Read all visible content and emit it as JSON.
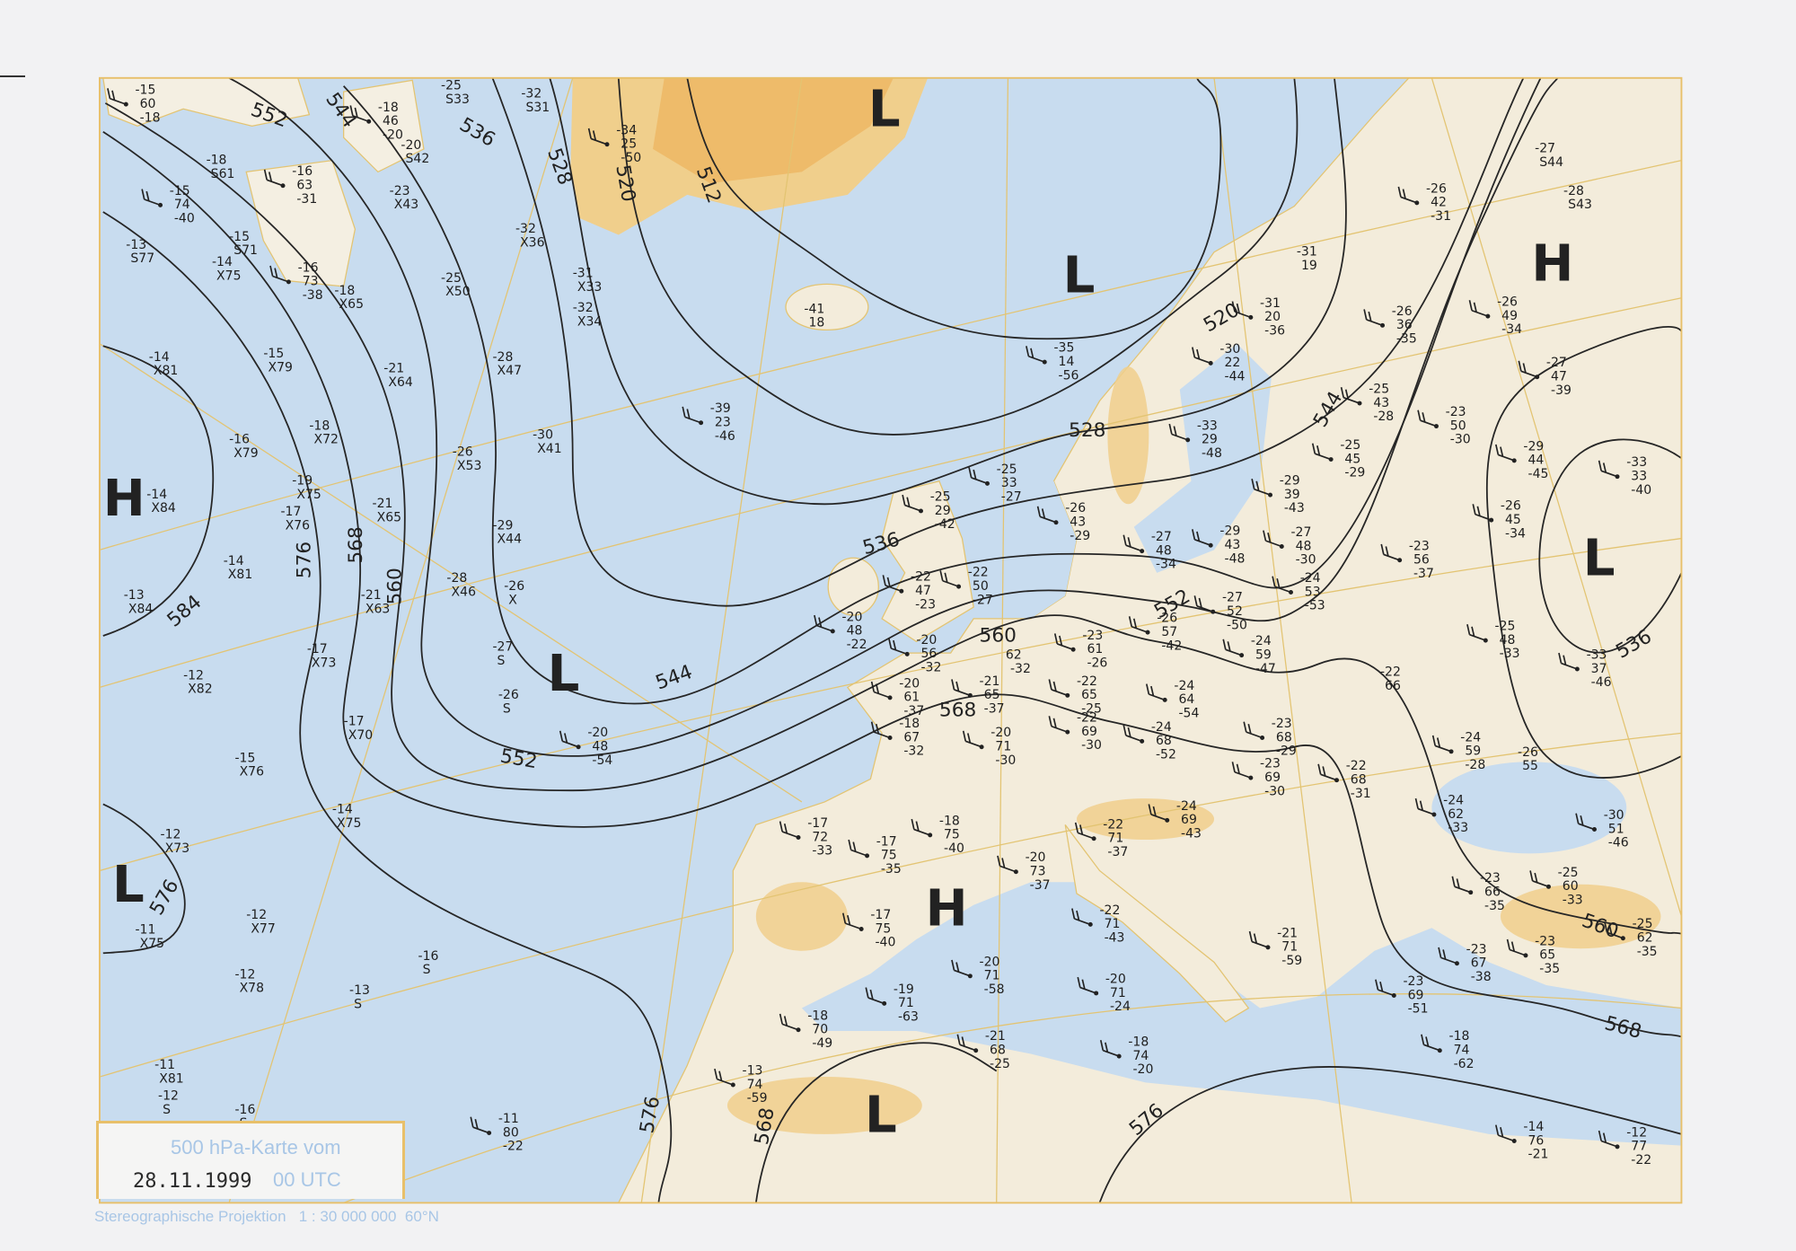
{
  "caption": {
    "title": "500 hPa-Karte vom",
    "date": "28.11.1999",
    "time": "00 UTC"
  },
  "footer": {
    "projection": "Stereographische Projektion",
    "scale": "1 : 30 000 000",
    "reference_latitude": "60°N"
  },
  "colors": {
    "sea": "#c8dcef",
    "land": "#f3ecdb",
    "highland": "#f0cf8c",
    "graticule": "#e3c472",
    "contour": "#262626",
    "caption_text": "#a8c6e6"
  },
  "pressure_centers": [
    {
      "type": "H"
    },
    {
      "type": "L"
    },
    {
      "type": "L"
    },
    {
      "type": "H"
    },
    {
      "type": "L"
    },
    {
      "type": "L"
    },
    {
      "type": "L"
    },
    {
      "type": "H"
    },
    {
      "type": "L"
    }
  ],
  "contour_labels": [
    "552",
    "544",
    "536",
    "528",
    "520",
    "512",
    "520",
    "528",
    "536",
    "544",
    "552",
    "560",
    "568",
    "576",
    "584",
    "576",
    "568",
    "560",
    "568",
    "576",
    "544",
    "536",
    "552",
    "560",
    "568",
    "576"
  ],
  "stations": [
    [
      "-15",
      "60",
      "-18"
    ],
    [
      "-18",
      "S61"
    ],
    [
      "-15",
      "74",
      "-40"
    ],
    [
      "-13",
      "S77"
    ],
    [
      "-15",
      "S71"
    ],
    [
      "-14",
      "X75"
    ],
    [
      "-16",
      "63",
      "-31"
    ],
    [
      "-16",
      "73",
      "-38"
    ],
    [
      "-18",
      "X65"
    ],
    [
      "-18",
      "46",
      "-20"
    ],
    [
      "-20",
      "S42"
    ],
    [
      "-23",
      "X43"
    ],
    [
      "-25",
      "S33"
    ],
    [
      "-32",
      "S31"
    ],
    [
      "-32",
      "X36"
    ],
    [
      "-25",
      "X50"
    ],
    [
      "-31",
      "X33"
    ],
    [
      "-32",
      "X34"
    ],
    [
      "-34",
      "25",
      "-50"
    ],
    [
      "-14",
      "X81"
    ],
    [
      "-15",
      "X79"
    ],
    [
      "-21",
      "X64"
    ],
    [
      "-28",
      "X47"
    ],
    [
      "-18",
      "X72"
    ],
    [
      "-16",
      "X79"
    ],
    [
      "-30",
      "X41"
    ],
    [
      "-26",
      "X53"
    ],
    [
      "-19",
      "X75"
    ],
    [
      "-17",
      "X76"
    ],
    [
      "-14",
      "X84"
    ],
    [
      "-21",
      "X65"
    ],
    [
      "-29",
      "X44"
    ],
    [
      "-14",
      "X81"
    ],
    [
      "-13",
      "X84"
    ],
    [
      "-28",
      "X46"
    ],
    [
      "-26",
      "X"
    ],
    [
      "-21",
      "X63"
    ],
    [
      "-27",
      "S"
    ],
    [
      "-17",
      "X73"
    ],
    [
      "-12",
      "X82"
    ],
    [
      "-26",
      "S"
    ],
    [
      "-17",
      "X70"
    ],
    [
      "-15",
      "X76"
    ],
    [
      "-20",
      "48",
      "-54"
    ],
    [
      "-14",
      "X75"
    ],
    [
      "-12",
      "X73"
    ],
    [
      "-12",
      "X77"
    ],
    [
      "-11",
      "X75"
    ],
    [
      "-16",
      "S"
    ],
    [
      "-12",
      "X78"
    ],
    [
      "-13",
      "S"
    ],
    [
      "-11",
      "X81"
    ],
    [
      "-12",
      "S"
    ],
    [
      "-16",
      "S"
    ],
    [
      "-11",
      "80",
      "-22"
    ],
    [
      "-41",
      "18"
    ],
    [
      "-39",
      "23",
      "-46"
    ],
    [
      "-35",
      "14",
      "-56"
    ],
    [
      "-31",
      "19"
    ],
    [
      "-31",
      "20",
      "-36"
    ],
    [
      "-30",
      "22",
      "-44"
    ],
    [
      "-33",
      "29",
      "-48"
    ],
    [
      "-26",
      "42",
      "-31"
    ],
    [
      "-27",
      "S44"
    ],
    [
      "-28",
      "S43"
    ],
    [
      "-26",
      "36",
      "-35"
    ],
    [
      "-26",
      "49",
      "-34"
    ],
    [
      "-27",
      "47",
      "-39"
    ],
    [
      "-25",
      "43",
      "-28"
    ],
    [
      "-23",
      "50",
      "-30"
    ],
    [
      "-25",
      "45",
      "-29"
    ],
    [
      "-29",
      "44",
      "-45"
    ],
    [
      "-33",
      "33",
      "-40"
    ],
    [
      "-29",
      "39",
      "-43"
    ],
    [
      "-26",
      "45",
      "-34"
    ],
    [
      "-25",
      "33",
      "-27"
    ],
    [
      "-25",
      "29",
      "-42"
    ],
    [
      "-26",
      "43",
      "-29"
    ],
    [
      "-27",
      "48",
      "-34"
    ],
    [
      "-29",
      "43",
      "-48"
    ],
    [
      "-27",
      "48",
      "-30"
    ],
    [
      "-23",
      "56",
      "-37"
    ],
    [
      "-24",
      "53",
      "-53"
    ],
    [
      "-22",
      "50",
      "-27"
    ],
    [
      "-22",
      "47",
      "-23"
    ],
    [
      "-27",
      "52",
      "-50"
    ],
    [
      "-26",
      "57",
      "-42"
    ],
    [
      "-20",
      "48",
      "-22"
    ],
    [
      "-20",
      "56",
      "-32"
    ],
    [
      "62",
      "-32"
    ],
    [
      "-23",
      "61",
      "-26"
    ],
    [
      "-24",
      "59",
      "-47"
    ],
    [
      "-25",
      "48",
      "-33"
    ],
    [
      "-33",
      "37",
      "-46"
    ],
    [
      "-20",
      "61",
      "-37"
    ],
    [
      "-21",
      "65",
      "-37"
    ],
    [
      "-22",
      "65",
      "-25"
    ],
    [
      "-24",
      "64",
      "-54"
    ],
    [
      "-22",
      "66"
    ],
    [
      "-18",
      "67",
      "-32"
    ],
    [
      "-20",
      "71",
      "-30"
    ],
    [
      "-22",
      "69",
      "-30"
    ],
    [
      "-24",
      "68",
      "-52"
    ],
    [
      "-23",
      "68",
      "-29"
    ],
    [
      "-24",
      "59",
      "-28"
    ],
    [
      "-26",
      "55"
    ],
    [
      "-23",
      "69",
      "-30"
    ],
    [
      "-22",
      "68",
      "-31"
    ],
    [
      "-24",
      "62",
      "-33"
    ],
    [
      "-24",
      "69",
      "-43"
    ],
    [
      "-30",
      "51",
      "-46"
    ],
    [
      "-17",
      "72",
      "-33"
    ],
    [
      "-17",
      "75",
      "-35"
    ],
    [
      "-18",
      "75",
      "-40"
    ],
    [
      "-22",
      "71",
      "-37"
    ],
    [
      "-20",
      "73",
      "-37"
    ],
    [
      "-25",
      "60",
      "-33"
    ],
    [
      "-23",
      "66",
      "-35"
    ],
    [
      "-22",
      "71",
      "-43"
    ],
    [
      "-17",
      "75",
      "-40"
    ],
    [
      "-25",
      "62",
      "-35"
    ],
    [
      "-21",
      "71",
      "-59"
    ],
    [
      "-23",
      "67",
      "-38"
    ],
    [
      "-23",
      "65",
      "-35"
    ],
    [
      "-20",
      "71",
      "-58"
    ],
    [
      "-20",
      "71",
      "-24"
    ],
    [
      "-19",
      "71",
      "-63"
    ],
    [
      "-23",
      "69",
      "-51"
    ],
    [
      "-18",
      "70",
      "-49"
    ],
    [
      "-21",
      "68",
      "-25"
    ],
    [
      "-18",
      "74",
      "-20"
    ],
    [
      "-18",
      "74",
      "-62"
    ],
    [
      "-13",
      "74",
      "-59"
    ],
    [
      "-14",
      "76",
      "-21"
    ],
    [
      "-12",
      "77",
      "-22"
    ]
  ]
}
